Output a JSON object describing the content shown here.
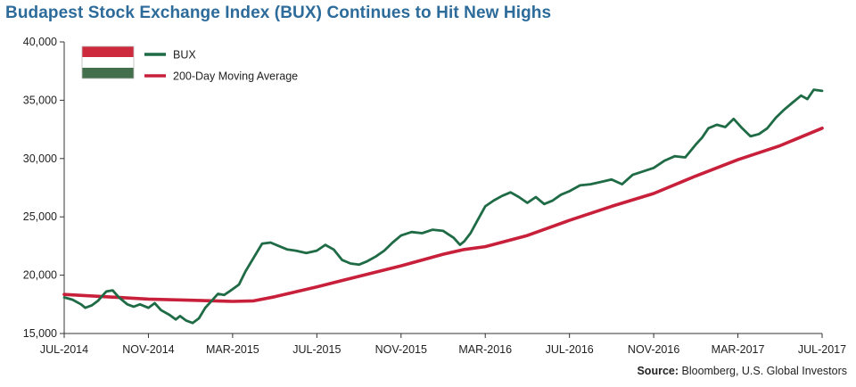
{
  "chart_data": {
    "type": "line",
    "title": "Budapest Stock Exchange Index (BUX) Continues to Hit New Highs",
    "source_label": "Source:",
    "source_text": "Bloomberg, U.S. Global Investors",
    "ylim": [
      15000,
      40000
    ],
    "yticks": [
      "15,000",
      "20,000",
      "25,000",
      "30,000",
      "35,000",
      "40,000"
    ],
    "ytick_values": [
      15000,
      20000,
      25000,
      30000,
      35000,
      40000
    ],
    "xlim": [
      0,
      36
    ],
    "xticks": [
      "JUL-2014",
      "NOV-2014",
      "MAR-2015",
      "JUL-2015",
      "NOV-2015",
      "MAR-2016",
      "JUL-2016",
      "NOV-2016",
      "MAR-2017",
      "JUL-2017"
    ],
    "xtick_values": [
      0,
      4,
      8,
      12,
      16,
      20,
      24,
      28,
      32,
      36
    ],
    "grid": false,
    "legend_position": "top-left",
    "flag_colors": [
      "#cd2a3e",
      "#ffffff",
      "#436f4d"
    ],
    "series": [
      {
        "name": "BUX",
        "color": "#1f6b45",
        "x": [
          0,
          0.4,
          0.8,
          1.0,
          1.3,
          1.6,
          1.8,
          2.0,
          2.3,
          2.6,
          3.0,
          3.3,
          3.6,
          4.0,
          4.3,
          4.6,
          5.0,
          5.3,
          5.5,
          5.8,
          6.1,
          6.4,
          6.7,
          7.0,
          7.3,
          7.6,
          8.0,
          8.3,
          8.6,
          9.0,
          9.4,
          9.8,
          10.2,
          10.6,
          11.0,
          11.5,
          12.0,
          12.4,
          12.8,
          13.2,
          13.6,
          14.0,
          14.4,
          14.8,
          15.2,
          15.6,
          16.0,
          16.5,
          17.0,
          17.5,
          18.0,
          18.5,
          18.8,
          19.0,
          19.3,
          19.6,
          20.0,
          20.4,
          20.8,
          21.2,
          21.6,
          22.0,
          22.4,
          22.8,
          23.2,
          23.6,
          24.0,
          24.5,
          25.0,
          25.5,
          26.0,
          26.5,
          27.0,
          27.5,
          28.0,
          28.5,
          29.0,
          29.5,
          30.0,
          30.3,
          30.6,
          31.0,
          31.4,
          31.8,
          32.2,
          32.6,
          33.0,
          33.4,
          33.8,
          34.2,
          34.6,
          35.0,
          35.3,
          35.6,
          36.0
        ],
        "y": [
          18100,
          17900,
          17500,
          17200,
          17400,
          17800,
          18200,
          18600,
          18700,
          18100,
          17500,
          17300,
          17500,
          17200,
          17600,
          17000,
          16600,
          16200,
          16500,
          16100,
          15900,
          16300,
          17200,
          17800,
          18400,
          18300,
          18800,
          19200,
          20300,
          21500,
          22700,
          22800,
          22500,
          22200,
          22100,
          21900,
          22100,
          22600,
          22200,
          21300,
          21000,
          20900,
          21200,
          21600,
          22100,
          22800,
          23400,
          23700,
          23600,
          23900,
          23800,
          23200,
          22600,
          22900,
          23600,
          24600,
          25900,
          26400,
          26800,
          27100,
          26700,
          26200,
          26700,
          26100,
          26400,
          26900,
          27200,
          27700,
          27800,
          28000,
          28200,
          27800,
          28600,
          28900,
          29200,
          29800,
          30200,
          30100,
          31200,
          31800,
          32600,
          32900,
          32700,
          33400,
          32600,
          31900,
          32100,
          32600,
          33500,
          34200,
          34800,
          35400,
          35100,
          35900,
          35800
        ]
      },
      {
        "name": "200-Day Moving Average",
        "color": "#c8203b",
        "x": [
          0,
          2,
          4,
          6,
          8,
          9,
          10,
          12,
          14,
          16,
          18,
          19,
          20,
          22,
          24,
          26,
          28,
          30,
          32,
          34,
          36
        ],
        "y": [
          18350,
          18150,
          17950,
          17850,
          17750,
          17800,
          18150,
          19000,
          19900,
          20800,
          21800,
          22200,
          22450,
          23400,
          24700,
          25900,
          27000,
          28500,
          29900,
          31100,
          32600
        ]
      }
    ]
  }
}
